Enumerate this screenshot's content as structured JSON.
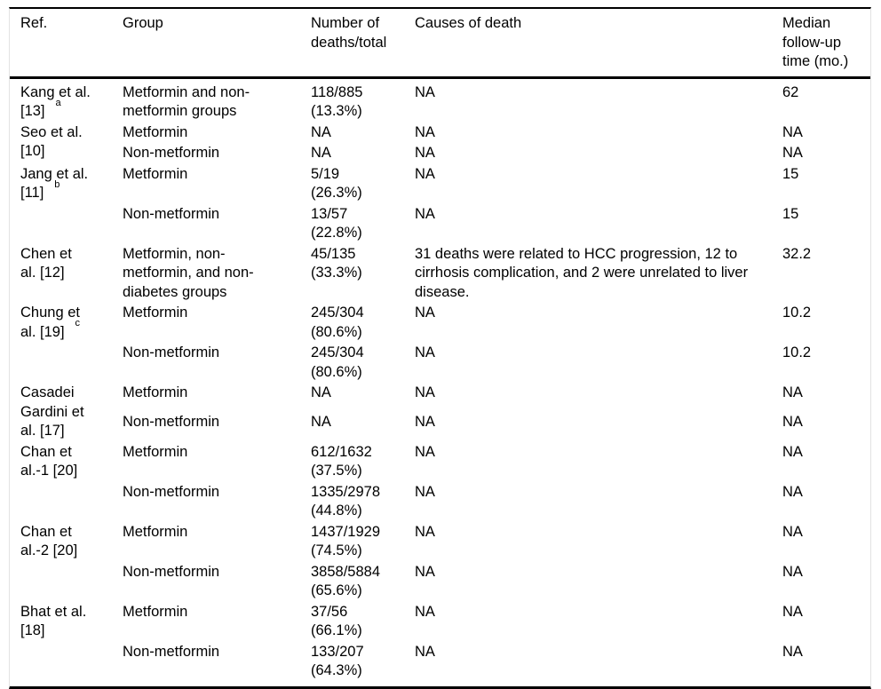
{
  "page": {
    "background": "#ffffff",
    "text_color": "#000000",
    "heavy_rule_color": "#000000",
    "side_rule_color": "#e3e3e3"
  },
  "table": {
    "columns": [
      "Ref.",
      "Group",
      "Number of\ndeaths/total",
      "Causes of death",
      "Median\nfollow-up\ntime (mo.)"
    ],
    "column_keys": [
      "ref",
      "group",
      "deaths",
      "causes",
      "followup"
    ],
    "studies": [
      {
        "ref": "Kang et al.\n[13]",
        "ref_sup": "a",
        "rows": [
          {
            "group": "Metformin and non-\nmetformin groups",
            "deaths": "118/885\n(13.3%)",
            "causes": "NA",
            "followup": "62"
          }
        ]
      },
      {
        "ref": "Seo et al.\n[10]",
        "rows": [
          {
            "group": "Metformin",
            "deaths": "NA",
            "causes": "NA",
            "followup": "NA"
          },
          {
            "group": "Non-metformin",
            "deaths": "NA",
            "causes": "NA",
            "followup": "NA"
          }
        ]
      },
      {
        "ref": "Jang et al.\n[11]",
        "ref_sup": "b",
        "rows": [
          {
            "group": "Metformin",
            "deaths": "5/19\n(26.3%)",
            "causes": "NA",
            "followup": "15"
          },
          {
            "group": "Non-metformin",
            "deaths": "13/57\n(22.8%)",
            "causes": "NA",
            "followup": "15"
          }
        ]
      },
      {
        "ref": "Chen et\nal. [12]",
        "rows": [
          {
            "group": "Metformin, non-\nmetformin, and non-\ndiabetes groups",
            "deaths": "45/135\n(33.3%)",
            "causes": "31 deaths were related to HCC progression, 12 to cirrhosis complication, and 2 were unrelated to liver disease.",
            "followup": "32.2"
          }
        ]
      },
      {
        "ref": "Chung et\nal. [19]",
        "ref_sup": "c",
        "rows": [
          {
            "group": "Metformin",
            "deaths": "245/304\n(80.6%)",
            "causes": "NA",
            "followup": "10.2"
          },
          {
            "group": "Non-metformin",
            "deaths": "245/304\n(80.6%)",
            "causes": "NA",
            "followup": "10.2"
          }
        ]
      },
      {
        "ref": "Casadei\nGardini et\nal. [17]",
        "rows": [
          {
            "group": "Metformin",
            "deaths": "NA",
            "causes": "NA",
            "followup": "NA"
          },
          {
            "group": "Non-metformin",
            "deaths": "NA",
            "causes": "NA",
            "followup": "NA"
          }
        ]
      },
      {
        "ref": "Chan et\nal.-1 [20]",
        "rows": [
          {
            "group": "Metformin",
            "deaths": "612/1632\n(37.5%)",
            "causes": "NA",
            "followup": "NA"
          },
          {
            "group": "Non-metformin",
            "deaths": "1335/2978\n(44.8%)",
            "causes": "NA",
            "followup": "NA"
          }
        ]
      },
      {
        "ref": "Chan et\nal.-2 [20]",
        "rows": [
          {
            "group": "Metformin",
            "deaths": "1437/1929\n(74.5%)",
            "causes": "NA",
            "followup": "NA"
          },
          {
            "group": "Non-metformin",
            "deaths": "3858/5884\n(65.6%)",
            "causes": "NA",
            "followup": "NA"
          }
        ]
      },
      {
        "ref": "Bhat et al.\n[18]",
        "rows": [
          {
            "group": "Metformin",
            "deaths": "37/56\n(66.1%)",
            "causes": "NA",
            "followup": "NA"
          },
          {
            "group": "Non-metformin",
            "deaths": "133/207\n(64.3%)",
            "causes": "NA",
            "followup": "NA"
          }
        ]
      }
    ]
  }
}
